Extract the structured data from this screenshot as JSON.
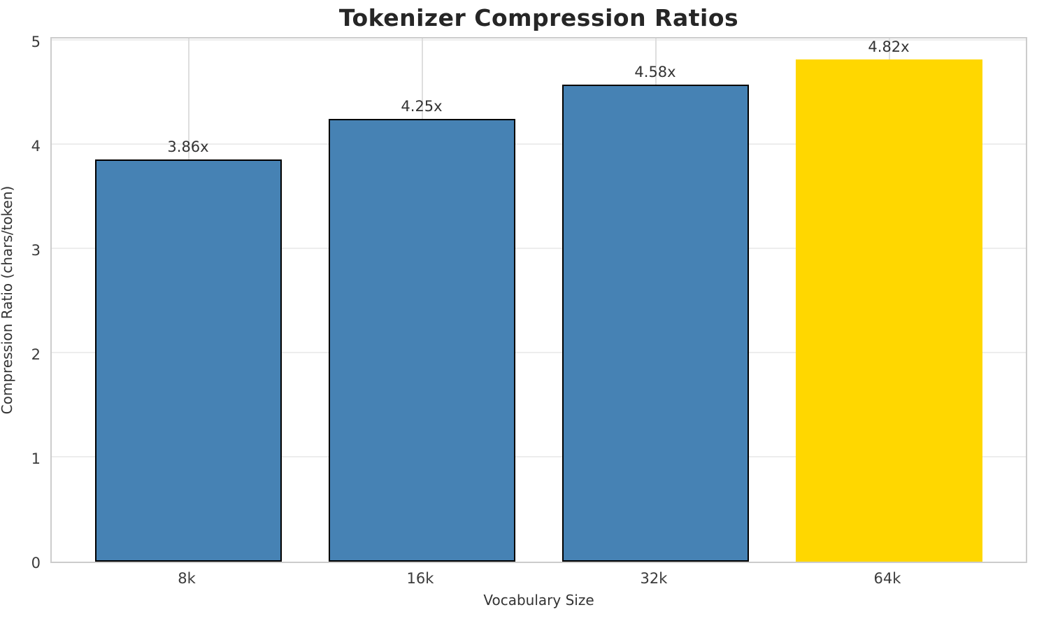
{
  "chart": {
    "title": "Tokenizer Compression Ratios",
    "xlabel": "Vocabulary Size",
    "ylabel": "Compression Ratio (chars/token)"
  },
  "chart_data": {
    "type": "bar",
    "title": "Tokenizer Compression Ratios",
    "xlabel": "Vocabulary Size",
    "ylabel": "Compression Ratio (chars/token)",
    "categories": [
      "8k",
      "16k",
      "32k",
      "64k"
    ],
    "values": [
      3.86,
      4.25,
      4.58,
      4.82
    ],
    "bar_labels": [
      "3.86x",
      "4.25x",
      "4.58x",
      "4.82x"
    ],
    "bar_colors": [
      "#4682b4",
      "#4682b4",
      "#4682b4",
      "#ffd700"
    ],
    "bar_edge_colors": [
      "#000000",
      "#000000",
      "#000000",
      "none"
    ],
    "ytick_labels": [
      "0",
      "1",
      "2",
      "3",
      "4",
      "5"
    ],
    "yticks": [
      0,
      1,
      2,
      3,
      4,
      5
    ],
    "ylim": [
      0,
      5.05
    ],
    "grid": true,
    "legend": "none",
    "colors": {
      "bar_default": "#4682b4",
      "bar_highlight": "#ffd700",
      "bar_edge": "#000000",
      "grid_h": "#ededed",
      "grid_v": "#dedede",
      "spine": "#cccccc",
      "title_text": "#262626",
      "tick_text": "#3b3b3b",
      "label_text": "#333333"
    }
  }
}
